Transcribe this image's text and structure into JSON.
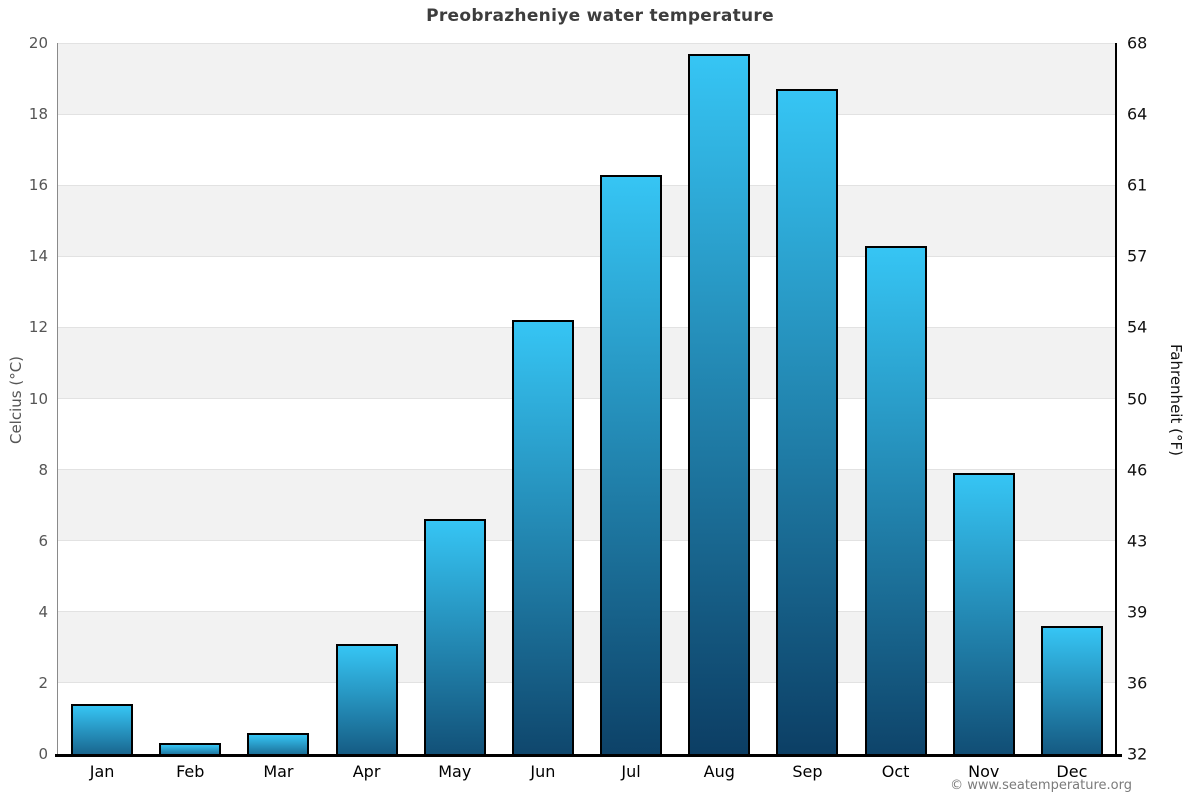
{
  "footer": {
    "credit": "© www.seatemperature.org"
  },
  "chart_data": {
    "type": "bar",
    "title": "Preobrazheniye water temperature",
    "categories": [
      "Jan",
      "Feb",
      "Mar",
      "Apr",
      "May",
      "Jun",
      "Jul",
      "Aug",
      "Sep",
      "Oct",
      "Nov",
      "Dec"
    ],
    "values": [
      1.4,
      0.3,
      0.6,
      3.1,
      6.6,
      12.2,
      16.3,
      19.7,
      18.7,
      14.3,
      7.9,
      3.6
    ],
    "unit": "°C",
    "ylabel_left": "Celcius (°C)",
    "ylabel_right": "Fahrenheit (°F)",
    "ylim": [
      0,
      20
    ],
    "yticks_left": [
      0,
      2,
      4,
      6,
      8,
      10,
      12,
      14,
      16,
      18,
      20
    ],
    "yticks_right": [
      32,
      36,
      39,
      43,
      46,
      50,
      54,
      57,
      61,
      64,
      68
    ],
    "legend": false,
    "grid": "alternating horizontal bands every 2°C, light gridlines",
    "colors": {
      "bar_top": "#36c5f4",
      "bar_bottom": "#0c3e64",
      "bar_border": "#000000",
      "band": "#f2f2f2",
      "gridline": "#e2e2e2",
      "title_text": "#3d3d3d",
      "left_axis_text": "#555555",
      "right_axis_text": "#111111",
      "footer_text": "#7b7b7b"
    }
  }
}
